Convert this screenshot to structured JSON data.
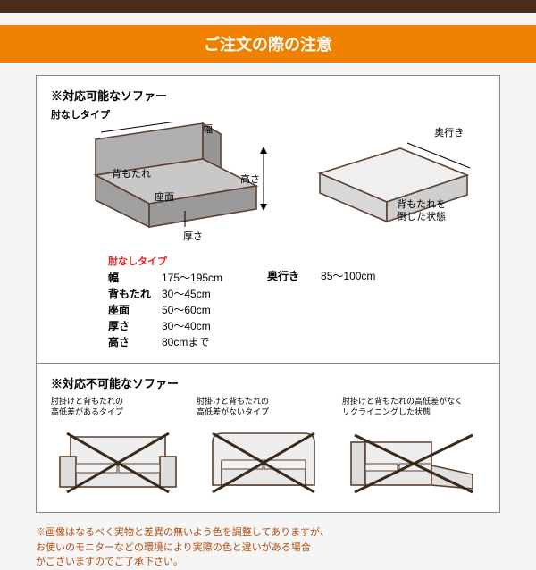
{
  "colors": {
    "top_bar": "#4a2c1a",
    "header_bg": "#f08000",
    "header_fg": "#ffffff",
    "border": "#888888",
    "red": "#e62020",
    "disclaimer": "#b05010",
    "sofa_fill": "#b0b0b0",
    "sofa_stroke": "#5a4030",
    "x_stroke": "#3a2a1a"
  },
  "header": "ご注文の際の注意",
  "section1": {
    "title": "※対応可能なソファー",
    "subtitle": "肘なしタイプ",
    "labels": {
      "width": "幅",
      "depth": "奥行き",
      "back": "背もたれ",
      "seat": "座面",
      "thick": "厚さ",
      "height": "高さ",
      "folded": "背もたれを\n倒した状態"
    },
    "red_title": "肘なしタイプ",
    "spec_left": [
      {
        "k": "幅",
        "v": "175～195cm"
      },
      {
        "k": "背もたれ",
        "v": "30～45cm"
      },
      {
        "k": "座面",
        "v": "50～60cm"
      },
      {
        "k": "厚さ",
        "v": "30～40cm"
      },
      {
        "k": "高さ",
        "v": "80cmまで"
      }
    ],
    "spec_right": [
      {
        "k": "奥行き",
        "v": "85～100cm"
      }
    ]
  },
  "section2": {
    "title": "※対応不可能なソファー",
    "items": [
      "肘掛けと背もたれの\n高低差があるタイプ",
      "肘掛けと背もたれの\n高低差がないタイプ",
      "肘掛けと背もたれの高低差がなく\nリクライニングした状態"
    ]
  },
  "disclaimer": "※画像はなるべく実物と差異の無いよう色を調整してありますが、\nお使いのモニターなどの環境により実際の色と違いがある場合\nがございますのでご了承下さい。"
}
